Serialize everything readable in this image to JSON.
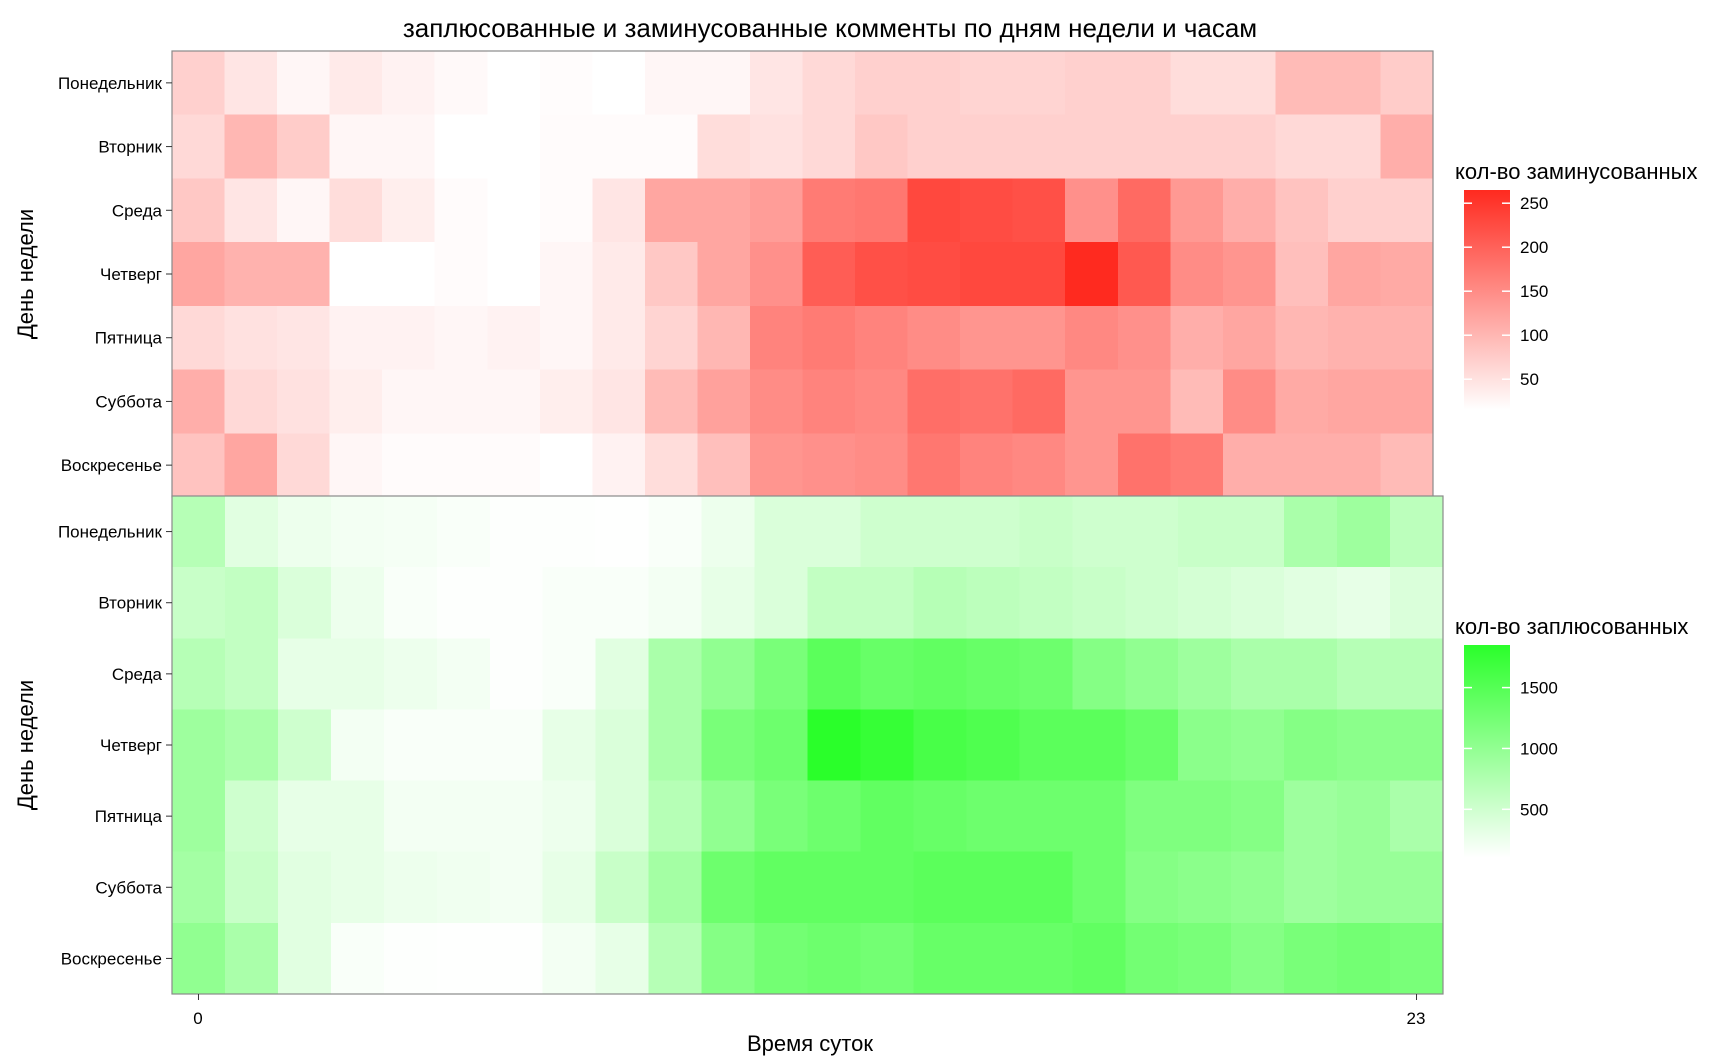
{
  "chart_data": {
    "type": "heatmap",
    "title": "заплюсованные и заминусованные комменты по дням недели и часам",
    "xlabel": "Время суток",
    "x_ticks": [
      "0",
      "23"
    ],
    "hours": [
      0,
      1,
      2,
      3,
      4,
      5,
      6,
      7,
      8,
      9,
      10,
      11,
      12,
      13,
      14,
      15,
      16,
      17,
      18,
      19,
      20,
      21,
      22,
      23
    ],
    "panels": [
      {
        "ylabel": "День недели",
        "legend_title": "кол-во заминусованных",
        "high_color": "#ff2a1f",
        "low_color": "#ffffff",
        "range": [
          15,
          265
        ],
        "legend_ticks": [
          50,
          100,
          150,
          200,
          250
        ],
        "rows": [
          "Понедельник",
          "Вторник",
          "Среда",
          "Четверг",
          "Пятница",
          "Суббота",
          "Воскресенье"
        ],
        "values": [
          [
            70,
            45,
            25,
            40,
            30,
            22,
            15,
            18,
            15,
            25,
            25,
            45,
            60,
            70,
            70,
            65,
            65,
            70,
            70,
            55,
            55,
            95,
            95,
            75
          ],
          [
            60,
            100,
            75,
            25,
            25,
            15,
            15,
            20,
            20,
            20,
            55,
            50,
            60,
            80,
            70,
            70,
            70,
            70,
            70,
            70,
            70,
            60,
            60,
            110
          ],
          [
            80,
            45,
            25,
            55,
            35,
            20,
            15,
            20,
            45,
            120,
            120,
            130,
            170,
            175,
            230,
            225,
            220,
            145,
            190,
            135,
            110,
            85,
            70,
            70
          ],
          [
            120,
            105,
            105,
            15,
            15,
            20,
            15,
            25,
            40,
            80,
            120,
            145,
            205,
            220,
            225,
            230,
            230,
            265,
            210,
            150,
            140,
            90,
            120,
            115
          ],
          [
            60,
            50,
            45,
            30,
            30,
            25,
            30,
            25,
            40,
            65,
            100,
            160,
            170,
            160,
            150,
            140,
            140,
            155,
            145,
            110,
            120,
            100,
            105,
            105
          ],
          [
            110,
            60,
            50,
            35,
            25,
            25,
            25,
            35,
            45,
            95,
            125,
            150,
            160,
            155,
            185,
            180,
            190,
            140,
            140,
            95,
            150,
            115,
            120,
            120
          ],
          [
            85,
            120,
            60,
            25,
            20,
            20,
            20,
            15,
            30,
            55,
            90,
            140,
            145,
            150,
            175,
            160,
            155,
            140,
            180,
            170,
            110,
            110,
            110,
            95
          ]
        ]
      },
      {
        "ylabel": "День недели",
        "legend_title": "кол-во заплюсованных",
        "high_color": "#2aff2a",
        "low_color": "#ffffff",
        "range": [
          100,
          1850
        ],
        "legend_ticks": [
          500,
          1000,
          1500
        ],
        "rows": [
          "Понедельник",
          "Вторник",
          "Среда",
          "Четверг",
          "Пятница",
          "Суббота",
          "Воскресенье"
        ],
        "values": [
          [
            700,
            350,
            250,
            200,
            180,
            150,
            120,
            120,
            110,
            150,
            250,
            400,
            400,
            500,
            500,
            500,
            550,
            500,
            500,
            550,
            550,
            800,
            900,
            650
          ],
          [
            550,
            600,
            400,
            250,
            150,
            120,
            120,
            150,
            150,
            200,
            300,
            400,
            600,
            600,
            700,
            650,
            600,
            550,
            500,
            450,
            400,
            350,
            300,
            400
          ],
          [
            700,
            600,
            300,
            300,
            250,
            200,
            120,
            150,
            350,
            800,
            1000,
            1200,
            1450,
            1350,
            1400,
            1350,
            1300,
            1100,
            1000,
            900,
            800,
            800,
            700,
            700
          ],
          [
            900,
            800,
            500,
            200,
            150,
            150,
            150,
            300,
            400,
            800,
            1200,
            1300,
            1850,
            1750,
            1600,
            1550,
            1450,
            1450,
            1350,
            1050,
            1000,
            1100,
            1050,
            1050
          ],
          [
            900,
            500,
            300,
            300,
            200,
            200,
            200,
            250,
            400,
            700,
            1000,
            1200,
            1300,
            1400,
            1350,
            1300,
            1300,
            1300,
            1150,
            1150,
            1100,
            900,
            950,
            800
          ],
          [
            850,
            550,
            350,
            300,
            250,
            220,
            200,
            300,
            550,
            850,
            1300,
            1400,
            1400,
            1400,
            1450,
            1450,
            1450,
            1300,
            1100,
            1050,
            1000,
            900,
            950,
            950
          ],
          [
            1000,
            800,
            350,
            150,
            120,
            110,
            110,
            200,
            300,
            700,
            1100,
            1250,
            1300,
            1250,
            1350,
            1350,
            1350,
            1400,
            1250,
            1200,
            1100,
            1200,
            1250,
            1200
          ]
        ]
      }
    ]
  }
}
